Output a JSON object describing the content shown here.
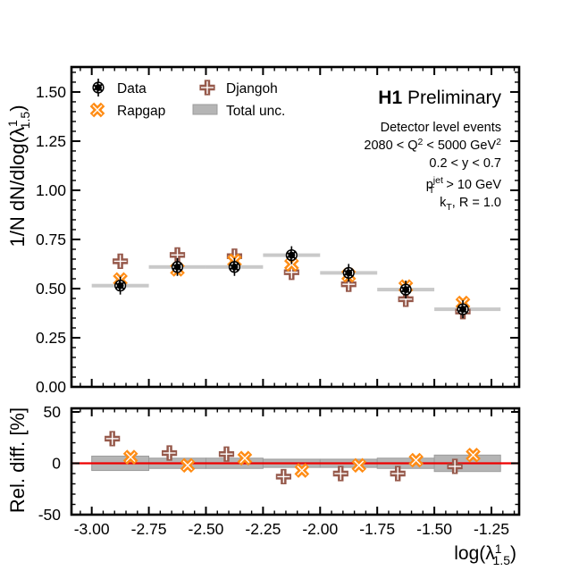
{
  "header": {
    "bold": "H1",
    "rest": " Preliminary"
  },
  "conditions": {
    "line1": "Detector level events",
    "q2": {
      "a": "2080 < Q",
      "a_sup": "2",
      "b": " < 5000 GeV",
      "b_sup": "2"
    },
    "y_range": "0.2 < y < 0.7",
    "pt": {
      "a": "p",
      "sup": "jet",
      "sub": "T",
      "b": " > 10 GeV"
    },
    "kt": {
      "a": "k",
      "sub": "T",
      "b": ", R = 1.0"
    }
  },
  "legend": {
    "data": "Data",
    "rapgap": "Rapgap",
    "djangoh": "Djangoh",
    "unc": "Total unc."
  },
  "axis_titles": {
    "main_y": {
      "pre": "1/N dN/dlog(",
      "lambda": "λ",
      "sup": "1",
      "sub": "1.5",
      "post": ")"
    },
    "ratio_y": "Rel. diff. [%]",
    "x": {
      "pre": "log(",
      "lambda": "λ",
      "sup": "1",
      "sub": "1.5",
      "post": ")"
    }
  },
  "chart_data": {
    "type": "scatter",
    "panels": [
      "distribution",
      "relative-difference"
    ],
    "x_axis": {
      "range": [
        -3.0887,
        -1.1287
      ],
      "tick_values": [
        -3.0,
        -2.75,
        -2.5,
        -2.25,
        -2.0,
        -1.75,
        -1.5,
        -1.25
      ],
      "tick_labels": [
        "-3.00",
        "-2.75",
        "-2.50",
        "-2.25",
        "-2.00",
        "-1.75",
        "-1.50",
        "-1.25"
      ],
      "minor_step": 0.05
    },
    "main_panel": {
      "y_range": [
        0,
        1.627
      ],
      "y_tick_values": [
        0.0,
        0.25,
        0.5,
        0.75,
        1.0,
        1.25,
        1.5
      ],
      "y_tick_labels": [
        "0.00",
        "0.25",
        "0.50",
        "0.75",
        "1.00",
        "1.25",
        "1.50"
      ],
      "y_minor_step": 0.05
    },
    "ratio_panel": {
      "y_range": [
        -50,
        53.5
      ],
      "y_tick_values": [
        -50,
        0,
        50
      ],
      "y_tick_labels": [
        "-50",
        "0",
        "50"
      ],
      "y_minor_step": 10,
      "zero_line": 0
    },
    "series_names": [
      "Data",
      "Rapgap",
      "Djangoh",
      "Total unc."
    ],
    "bins": [
      {
        "x": -2.875,
        "lo": -3.0,
        "hi": -2.75,
        "data": 0.515,
        "rapgap": 0.546,
        "djangoh": 0.639,
        "rel_rapgap": 6,
        "rel_djangoh": 24,
        "rel_unc": 7
      },
      {
        "x": -2.625,
        "lo": -2.75,
        "hi": -2.5,
        "data": 0.61,
        "rapgap": 0.598,
        "djangoh": 0.671,
        "rel_rapgap": -2,
        "rel_djangoh": 10,
        "rel_unc": 5
      },
      {
        "x": -2.375,
        "lo": -2.5,
        "hi": -2.25,
        "data": 0.61,
        "rapgap": 0.641,
        "djangoh": 0.665,
        "rel_rapgap": 5,
        "rel_djangoh": 9,
        "rel_unc": 5
      },
      {
        "x": -2.125,
        "lo": -2.25,
        "hi": -2.0,
        "data": 0.67,
        "rapgap": 0.623,
        "djangoh": 0.583,
        "rel_rapgap": -7,
        "rel_djangoh": -13,
        "rel_unc": 4
      },
      {
        "x": -1.875,
        "lo": -2.0,
        "hi": -1.75,
        "data": 0.58,
        "rapgap": 0.568,
        "djangoh": 0.522,
        "rel_rapgap": -2,
        "rel_djangoh": -10,
        "rel_unc": 4
      },
      {
        "x": -1.625,
        "lo": -1.75,
        "hi": -1.5,
        "data": 0.495,
        "rapgap": 0.51,
        "djangoh": 0.446,
        "rel_rapgap": 3,
        "rel_djangoh": -10,
        "rel_unc": 5
      },
      {
        "x": -1.375,
        "lo": -1.5,
        "hi": -1.21,
        "data": 0.395,
        "rapgap": 0.427,
        "djangoh": 0.383,
        "rel_rapgap": 8,
        "rel_djangoh": -3,
        "rel_unc": 8
      }
    ],
    "ratio_marker_dx": {
      "djangoh": -0.035,
      "rapgap": 0.045
    },
    "colors": {
      "data": "#000000",
      "rapgap": "#ff8c14",
      "djangoh": "#96594b",
      "band_main": "#c9c9c9",
      "band_ratio_fill": "#b5b5b5",
      "band_ratio_stroke": "#9c9c9c",
      "zero_line": "#ee0000"
    }
  }
}
